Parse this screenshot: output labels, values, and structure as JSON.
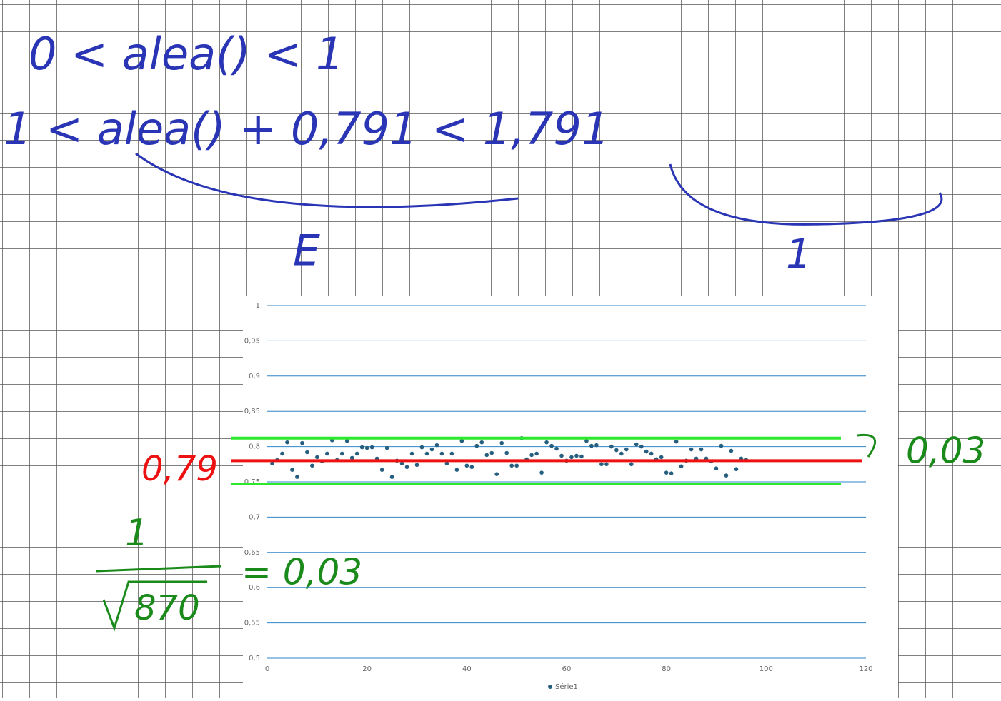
{
  "annotations": {
    "line1": "0 < alea() < 1",
    "line2": "1 < alea() + 0,791 < 1,791",
    "brace_left": "E",
    "brace_right": "1",
    "mean": "0,79",
    "margin": "0,03",
    "formula_num": "1",
    "formula_den": "870",
    "formula_result": "= 0,03"
  },
  "chart_data": {
    "type": "scatter",
    "x": [
      1,
      2,
      3,
      4,
      5,
      6,
      7,
      8,
      9,
      10,
      11,
      12,
      13,
      14,
      15,
      16,
      17,
      18,
      19,
      20,
      21,
      22,
      23,
      24,
      25,
      26,
      27,
      28,
      29,
      30,
      31,
      32,
      33,
      34,
      35,
      36,
      37,
      38,
      39,
      40,
      41,
      42,
      43,
      44,
      45,
      46,
      47,
      48,
      49,
      50,
      51,
      52,
      53,
      54,
      55,
      56,
      57,
      58,
      59,
      60,
      61,
      62,
      63,
      64,
      65,
      66,
      67,
      68,
      69,
      70,
      71,
      72,
      73,
      74,
      75,
      76,
      77,
      78,
      79,
      80,
      81,
      82,
      83,
      84,
      85,
      86,
      87,
      88,
      89,
      90,
      91,
      92,
      93,
      94,
      95,
      96
    ],
    "series": [
      {
        "name": "Série1",
        "color": "#255e7e",
        "values": [
          0.776,
          0.781,
          0.79,
          0.806,
          0.767,
          0.757,
          0.805,
          0.792,
          0.773,
          0.785,
          0.779,
          0.79,
          0.809,
          0.781,
          0.79,
          0.808,
          0.784,
          0.79,
          0.799,
          0.798,
          0.799,
          0.783,
          0.767,
          0.798,
          0.757,
          0.78,
          0.776,
          0.771,
          0.79,
          0.774,
          0.799,
          0.79,
          0.796,
          0.802,
          0.79,
          0.776,
          0.79,
          0.767,
          0.808,
          0.773,
          0.771,
          0.801,
          0.806,
          0.788,
          0.791,
          0.761,
          0.805,
          0.791,
          0.773,
          0.773,
          0.812,
          0.782,
          0.788,
          0.79,
          0.763,
          0.806,
          0.801,
          0.797,
          0.787,
          0.78,
          0.785,
          0.787,
          0.786,
          0.808,
          0.801,
          0.802,
          0.775,
          0.775,
          0.8,
          0.795,
          0.79,
          0.796,
          0.775,
          0.803,
          0.8,
          0.793,
          0.79,
          0.782,
          0.785,
          0.763,
          0.762,
          0.807,
          0.772,
          0.78,
          0.796,
          0.783,
          0.796,
          0.783,
          0.779,
          0.769,
          0.801,
          0.759,
          0.794,
          0.768,
          0.783,
          0.781
        ]
      }
    ],
    "xlim": [
      0,
      120
    ],
    "xticks": [
      0,
      20,
      40,
      60,
      80,
      100,
      120
    ],
    "ylim": [
      0.5,
      1
    ],
    "yticks": [
      {
        "value": 0.5,
        "label": "0,5"
      },
      {
        "value": 0.55,
        "label": "0,55"
      },
      {
        "value": 0.6,
        "label": "0,6"
      },
      {
        "value": 0.65,
        "label": "0,65"
      },
      {
        "value": 0.7,
        "label": "0,7"
      },
      {
        "value": 0.75,
        "label": "0,75"
      },
      {
        "value": 0.8,
        "label": "0,8"
      },
      {
        "value": 0.85,
        "label": "0,85"
      },
      {
        "value": 0.9,
        "label": "0,9"
      },
      {
        "value": 0.95,
        "label": "0,95"
      },
      1
    ],
    "grid": true,
    "legend": "bottom",
    "reference_lines": [
      {
        "value": 0.812,
        "color": "#2ee82e"
      },
      {
        "value": 0.78,
        "color": "#ee1111"
      },
      {
        "value": 0.747,
        "color": "#2ee82e"
      }
    ]
  }
}
